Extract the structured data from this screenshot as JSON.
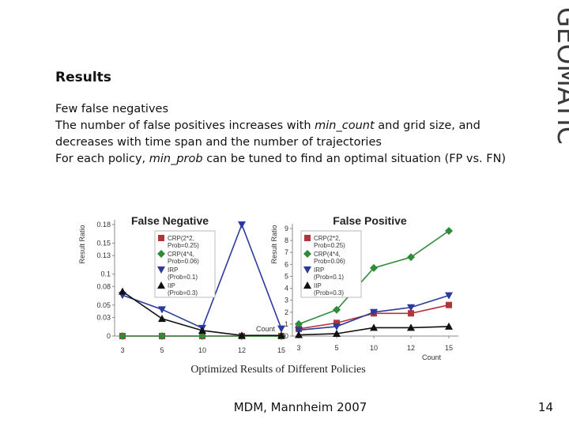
{
  "logo_text": "GEOMATIC",
  "slide": {
    "title": "Results",
    "bullets": [
      {
        "before": "Few false negatives",
        "em": "",
        "after": ""
      },
      {
        "before": "The number of false positives increases with ",
        "em": "min_count",
        "after": " and grid size, and decreases with time span and the number of trajectories"
      },
      {
        "before": "For each policy, ",
        "em": "min_prob",
        "after": " can be tuned to find an optimal situation (FP vs. FN)"
      }
    ],
    "footer": "MDM, Mannheim 2007",
    "page": "14"
  },
  "figure_caption": "Optimized Results of Different Policies",
  "colors": {
    "crp2": "#b5333a",
    "crp4": "#2e8b3a",
    "irp": "#2b3a9c",
    "iip": "#111111"
  },
  "chart_data": [
    {
      "type": "line",
      "title": "False Negative",
      "ylabel": "Result Ratio",
      "xlabel": "Count",
      "categories": [
        "3",
        "5",
        "10",
        "12",
        "15"
      ],
      "yticks": [
        "0",
        "0.03",
        "0.05",
        "0.08",
        "0.1",
        "0.13",
        "0.15",
        "0.18"
      ],
      "ylim": [
        0,
        0.18
      ],
      "legend_position": "top-left",
      "series": [
        {
          "legend": [
            "CRP(2*2,",
            "Prob=0.25)"
          ],
          "color_key": "crp2",
          "marker": "square",
          "values": [
            0,
            0,
            0,
            0,
            0
          ]
        },
        {
          "legend": [
            "CRP(4*4,",
            "Prob=0.06)"
          ],
          "color_key": "crp4",
          "marker": "diamond",
          "values": [
            0,
            0,
            0,
            0,
            0
          ]
        },
        {
          "legend": [
            "IRP",
            "(Prob=0.1)"
          ],
          "color_key": "irp",
          "marker": "triangle-down",
          "values": [
            0.066,
            0.043,
            0.013,
            0.18,
            0.012
          ]
        },
        {
          "legend": [
            "IIP",
            "(Prob=0.3)"
          ],
          "color_key": "iip",
          "marker": "triangle-up",
          "values": [
            0.072,
            0.028,
            0.009,
            0.001,
            0.001
          ]
        }
      ]
    },
    {
      "type": "line",
      "title": "False Positive",
      "ylabel": "Result Ratio",
      "xlabel": "Count",
      "categories": [
        "3",
        "5",
        "10",
        "12",
        "15"
      ],
      "yticks": [
        "0",
        "1",
        "2",
        "3",
        "4",
        "5",
        "6",
        "7",
        "8",
        "9"
      ],
      "ylim": [
        0,
        9
      ],
      "legend_position": "top-left",
      "series": [
        {
          "legend": [
            "CRP(2*2,",
            "Prob=0.25)"
          ],
          "color_key": "crp2",
          "marker": "square",
          "values": [
            0.6,
            1.1,
            1.9,
            1.9,
            2.6
          ]
        },
        {
          "legend": [
            "CRP(4*4,",
            "Prob=0.06)"
          ],
          "color_key": "crp4",
          "marker": "diamond",
          "values": [
            1.0,
            2.2,
            5.7,
            6.6,
            8.8
          ]
        },
        {
          "legend": [
            "IRP",
            "(Prob=0.1)"
          ],
          "color_key": "irp",
          "marker": "triangle-down",
          "values": [
            0.5,
            0.8,
            2.0,
            2.4,
            3.4
          ]
        },
        {
          "legend": [
            "IIP",
            "(Prob=0.3)"
          ],
          "color_key": "iip",
          "marker": "triangle-up",
          "values": [
            0.1,
            0.2,
            0.7,
            0.7,
            0.8
          ]
        }
      ]
    }
  ]
}
